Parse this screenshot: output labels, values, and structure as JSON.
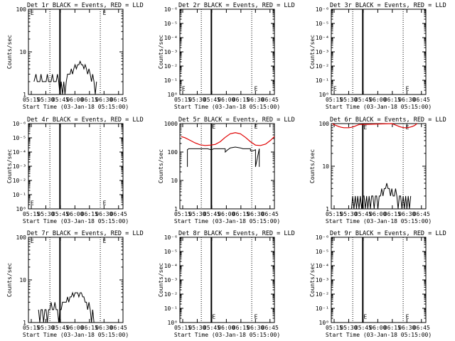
{
  "panels_title_suffix": "BLACK = Events, RED = LLD",
  "xlabel": "Start Time (03-Jan-18 05:15:00)",
  "ylabel": "Counts/sec",
  "x_ticks": [
    "05:15",
    "05:30",
    "05:45",
    "06:00",
    "06:15",
    "06:30",
    "06:45"
  ],
  "colors": {
    "events": "#000000",
    "lld": "#e00000"
  },
  "chart_data": [
    {
      "id": "1r",
      "title": "Det 1r",
      "type": "line",
      "yscale": "log",
      "ylim": [
        1,
        100
      ],
      "y_ticks": [
        "1",
        "10",
        "100"
      ],
      "xlim_minutes": [
        0,
        37.5
      ],
      "dotted_lines_at": [
        8.5,
        28.5
      ],
      "solid_line_at": 12.5,
      "markers": [
        {
          "label": "E",
          "x": 0.8,
          "y": 85
        },
        {
          "label": "E",
          "x": 29.5,
          "y": 85
        }
      ],
      "series": [
        {
          "key": "events",
          "x": [
            2.2,
            3.0,
            3.5,
            4.0,
            4.5,
            5.0,
            5.5,
            6.0,
            6.5,
            7.0,
            7.5,
            8.0,
            8.5,
            9.0,
            9.5,
            10.0,
            10.5,
            11.0,
            11.5,
            12.0,
            12.5,
            13.0,
            13.5,
            14.0,
            14.5,
            15.0,
            15.5,
            16.0,
            16.5,
            17.0,
            17.5,
            18.0,
            18.5,
            19.0,
            19.5,
            20.0,
            20.5,
            21.0,
            21.5,
            22.0,
            22.5,
            23.0,
            23.5,
            24.0,
            24.5,
            25.0,
            25.5,
            26.0,
            26.5,
            27.0
          ],
          "values": [
            2,
            3,
            2,
            2,
            2,
            3,
            2,
            2,
            2,
            2,
            3,
            2,
            2,
            2,
            3,
            2,
            2,
            2,
            3,
            2,
            1,
            2,
            1,
            2,
            1,
            2,
            3,
            3,
            3,
            4,
            3,
            4,
            5,
            4,
            5,
            5,
            6,
            5,
            5,
            4,
            5,
            4,
            3,
            4,
            3,
            2,
            3,
            2,
            1,
            2
          ]
        }
      ]
    },
    {
      "id": "2r",
      "title": "Det 2r",
      "type": "line",
      "yscale": "log",
      "ylim": [
        1,
        1000000
      ],
      "y_ticks": [
        "10⁰",
        "10⁻¹",
        "10⁻²",
        "10⁻³",
        "10⁻⁴",
        "10⁻⁵",
        "10⁻⁶"
      ],
      "xlim_minutes": [
        0,
        37.5
      ],
      "dotted_lines_at": [
        8.5,
        28.5
      ],
      "solid_line_at": 12.5,
      "markers": [
        {
          "label": "E",
          "x": 0.8,
          "y": 3
        },
        {
          "label": "E",
          "x": 29.5,
          "y": 3
        }
      ],
      "series": []
    },
    {
      "id": "3r",
      "title": "Det 3r",
      "type": "line",
      "yscale": "log",
      "ylim": [
        1,
        1000000
      ],
      "y_ticks": [
        "10⁰",
        "10⁻¹",
        "10⁻²",
        "10⁻³",
        "10⁻⁴",
        "10⁻⁵",
        "10⁻⁶"
      ],
      "xlim_minutes": [
        0,
        37.5
      ],
      "dotted_lines_at": [
        8.5,
        28.5
      ],
      "solid_line_at": 12.5,
      "markers": [
        {
          "label": "E",
          "x": 0.8,
          "y": 3
        },
        {
          "label": "E",
          "x": 29.5,
          "y": 3
        }
      ],
      "series": []
    },
    {
      "id": "4r",
      "title": "Det 4r",
      "type": "line",
      "yscale": "log",
      "ylim": [
        1,
        1000000
      ],
      "y_ticks": [
        "10⁰",
        "10⁻¹",
        "10⁻²",
        "10⁻³",
        "10⁻⁴",
        "10⁻⁵",
        "10⁻⁶"
      ],
      "xlim_minutes": [
        0,
        37.5
      ],
      "dotted_lines_at": [
        8.5,
        28.5
      ],
      "solid_line_at": 12.5,
      "markers": [
        {
          "label": "E",
          "x": 0.8,
          "y": 3
        },
        {
          "label": "E",
          "x": 29.5,
          "y": 3
        }
      ],
      "series": []
    },
    {
      "id": "5r",
      "title": "Det 5r",
      "type": "line",
      "yscale": "log",
      "ylim": [
        1,
        1000
      ],
      "y_ticks": [
        "1",
        "10",
        "100",
        "1000"
      ],
      "xlim_minutes": [
        0,
        37.5
      ],
      "dotted_lines_at": [
        8.5,
        28.5
      ],
      "solid_line_at": 12.5,
      "markers": [
        {
          "label": "E",
          "x": 12.8,
          "y": 850
        },
        {
          "label": "E",
          "x": 29.5,
          "y": 850
        }
      ],
      "series": [
        {
          "key": "lld",
          "x": [
            0.5,
            2,
            4,
            6,
            8,
            10,
            12,
            14,
            16,
            18,
            20,
            22,
            24,
            26,
            28,
            30,
            32,
            34,
            36,
            37.5
          ],
          "values": [
            350,
            320,
            260,
            210,
            180,
            170,
            175,
            185,
            230,
            330,
            440,
            480,
            440,
            330,
            230,
            175,
            170,
            190,
            260,
            350
          ]
        },
        {
          "key": "events",
          "x": [
            3,
            3,
            3.5,
            5,
            7,
            9,
            11,
            12.5,
            13.5,
            15,
            17,
            18,
            18,
            19,
            20,
            22,
            24,
            25,
            26,
            28,
            28,
            29,
            30,
            30,
            31.5,
            31.5
          ],
          "values": [
            30,
            120,
            130,
            130,
            130,
            130,
            130,
            120,
            130,
            130,
            130,
            130,
            100,
            120,
            140,
            150,
            140,
            130,
            130,
            130,
            110,
            110,
            120,
            30,
            130,
            30
          ]
        }
      ]
    },
    {
      "id": "6r",
      "title": "Det 6r",
      "type": "line",
      "yscale": "log",
      "ylim": [
        1,
        100
      ],
      "y_ticks": [
        "1",
        "10",
        "100"
      ],
      "xlim_minutes": [
        0,
        37.5
      ],
      "dotted_lines_at": [
        8.5,
        28.5
      ],
      "solid_line_at": 12.5,
      "markers": [
        {
          "label": "E",
          "x": 12.8,
          "y": 85
        },
        {
          "label": "E",
          "x": 29.5,
          "y": 85
        }
      ],
      "series": [
        {
          "key": "lld",
          "x": [
            0.5,
            1,
            2,
            3,
            4,
            5,
            6,
            7,
            8,
            9,
            10,
            11,
            24,
            25,
            26,
            27,
            28,
            29,
            30,
            31,
            32,
            33,
            34
          ],
          "values": [
            100,
            95,
            90,
            85,
            82,
            80,
            80,
            80,
            82,
            85,
            90,
            95,
            100,
            95,
            90,
            85,
            82,
            80,
            80,
            82,
            85,
            90,
            100
          ]
        },
        {
          "key": "events",
          "x": [
            8,
            8.5,
            9,
            9.5,
            10,
            10.5,
            11,
            11.5,
            12,
            12.5,
            13,
            13.5,
            14,
            14.5,
            15,
            15.5,
            16,
            16.5,
            17,
            17.5,
            18,
            18.5,
            19,
            19.5,
            20,
            20.5,
            21,
            21.5,
            22,
            22.5,
            23,
            23.5,
            24,
            24.5,
            25,
            25.5,
            26,
            26.5,
            27,
            27.5,
            28,
            28.5,
            29,
            29.5,
            30,
            30.5,
            31,
            31.5
          ],
          "values": [
            1,
            2,
            1,
            2,
            1,
            2,
            1,
            2,
            1,
            2,
            2,
            1,
            2,
            1,
            2,
            1,
            2,
            2,
            1,
            2,
            2,
            1,
            2,
            2,
            3,
            2,
            3,
            3,
            4,
            3,
            3,
            2,
            3,
            2,
            2,
            3,
            2,
            1,
            2,
            2,
            1,
            2,
            1,
            2,
            1,
            2,
            1,
            2
          ]
        }
      ]
    },
    {
      "id": "7r",
      "title": "Det 7r",
      "type": "line",
      "yscale": "log",
      "ylim": [
        1,
        100
      ],
      "y_ticks": [
        "1",
        "10",
        "100"
      ],
      "xlim_minutes": [
        0,
        37.5
      ],
      "dotted_lines_at": [
        8.5,
        28.5
      ],
      "solid_line_at": 12.5,
      "markers": [
        {
          "label": "E",
          "x": 0.8,
          "y": 85
        },
        {
          "label": "E",
          "x": 29.5,
          "y": 85
        }
      ],
      "series": [
        {
          "key": "events",
          "x": [
            4.0,
            4.5,
            5.0,
            5.5,
            6.0,
            6.5,
            7.0,
            7.5,
            8.0,
            8.5,
            9.0,
            9.5,
            10.0,
            10.5,
            11.0,
            11.5,
            12.0,
            12.5,
            13.0,
            13.5,
            14.0,
            14.5,
            15.0,
            15.5,
            16.0,
            16.5,
            17.0,
            17.5,
            18.0,
            18.5,
            19.0,
            19.5,
            20.0,
            20.5,
            21.0,
            21.5,
            22.0,
            22.5,
            23.0,
            23.5,
            24.0,
            24.5,
            25.0,
            25.5,
            26.0
          ],
          "values": [
            2,
            1,
            2,
            2,
            1,
            2,
            2,
            1,
            2,
            2,
            3,
            2,
            2,
            3,
            2,
            2,
            1,
            2,
            2,
            3,
            3,
            3,
            3,
            4,
            3,
            4,
            4,
            5,
            4,
            5,
            5,
            5,
            4,
            5,
            5,
            4,
            4,
            3,
            3,
            2,
            3,
            2,
            1,
            2,
            1
          ]
        }
      ]
    },
    {
      "id": "8r",
      "title": "Det 8r",
      "type": "line",
      "yscale": "log",
      "ylim": [
        1,
        1000000
      ],
      "y_ticks": [
        "10⁰",
        "10⁻¹",
        "10⁻²",
        "10⁻³",
        "10⁻⁴",
        "10⁻⁵",
        "10⁻⁶"
      ],
      "xlim_minutes": [
        0,
        37.5
      ],
      "dotted_lines_at": [
        8.5,
        28.5
      ],
      "solid_line_at": 12.5,
      "markers": [
        {
          "label": "E",
          "x": 12.8,
          "y": 3
        },
        {
          "label": "E",
          "x": 29.5,
          "y": 3
        }
      ],
      "series": []
    },
    {
      "id": "9r",
      "title": "Det 9r",
      "type": "line",
      "yscale": "log",
      "ylim": [
        1,
        1000000
      ],
      "y_ticks": [
        "10⁰",
        "10⁻¹",
        "10⁻²",
        "10⁻³",
        "10⁻⁴",
        "10⁻⁵",
        "10⁻⁶"
      ],
      "xlim_minutes": [
        0,
        37.5
      ],
      "dotted_lines_at": [
        8.5,
        28.5
      ],
      "solid_line_at": 12.5,
      "markers": [
        {
          "label": "E",
          "x": 12.8,
          "y": 3
        },
        {
          "label": "E",
          "x": 29.5,
          "y": 3
        }
      ],
      "series": []
    }
  ]
}
